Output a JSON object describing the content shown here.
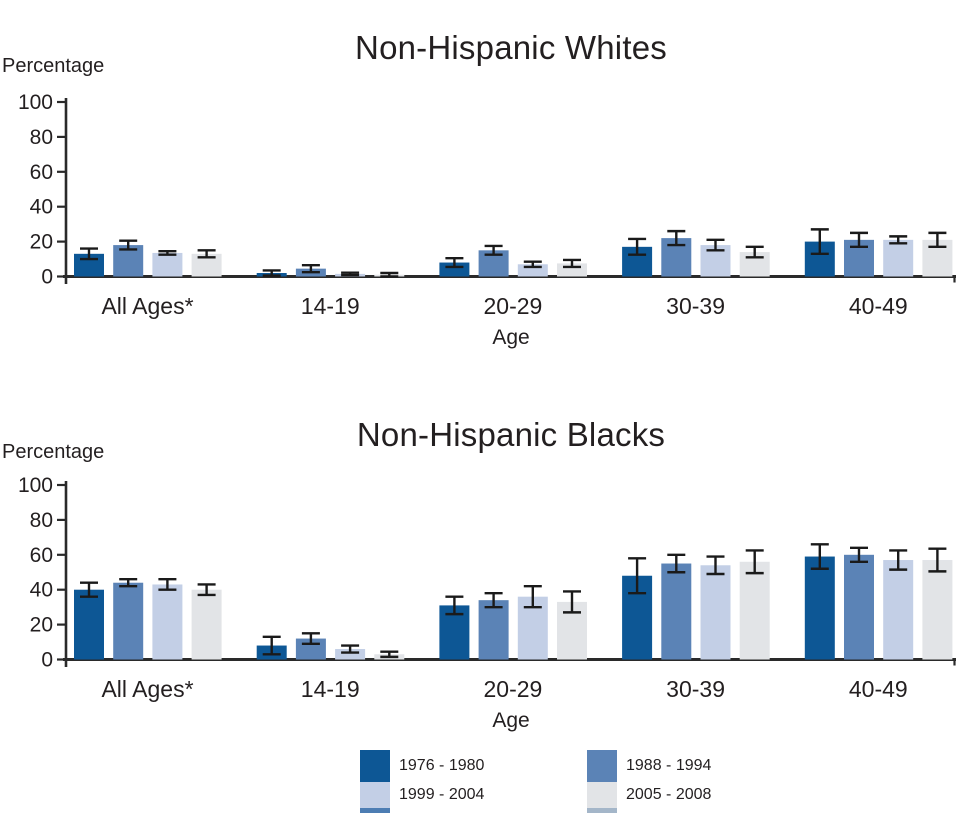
{
  "figure": {
    "background": "#ffffff",
    "text_color": "#231f20",
    "axis_color": "#2a2a2a",
    "error_bar_color": "#1a1a1a"
  },
  "chart_data": [
    {
      "type": "bar",
      "title": "Non-Hispanic Whites",
      "ylabel": "Percentage",
      "xlabel": "Age",
      "ylim": [
        0,
        100
      ],
      "yticks": [
        0,
        20,
        40,
        60,
        80,
        100
      ],
      "grid": false,
      "error_bars": true,
      "categories": [
        "All Ages*",
        "14-19",
        "20-29",
        "30-39",
        "40-49"
      ],
      "series": [
        {
          "name": "1976 - 1980",
          "color": "#0d5795",
          "values": [
            13,
            2,
            8,
            17,
            20
          ],
          "error": [
            3,
            1.5,
            2.5,
            4.5,
            7
          ]
        },
        {
          "name": "1988 - 1994",
          "color": "#5b83b6",
          "values": [
            18,
            4.5,
            15,
            22,
            21
          ],
          "error": [
            2.5,
            2,
            2.5,
            4,
            4
          ]
        },
        {
          "name": "1999 - 2004",
          "color": "#c3cfe6",
          "values": [
            13.5,
            1.5,
            7,
            18,
            21
          ],
          "error": [
            1,
            0.7,
            1.5,
            3,
            2
          ]
        },
        {
          "name": "2005 - 2008",
          "color": "#e2e4e7",
          "values": [
            13,
            1,
            7.5,
            14,
            21
          ],
          "error": [
            2,
            1,
            2,
            3,
            4
          ]
        }
      ]
    },
    {
      "type": "bar",
      "title": "Non-Hispanic Blacks",
      "ylabel": "Percentage",
      "xlabel": "Age",
      "ylim": [
        0,
        100
      ],
      "yticks": [
        0,
        20,
        40,
        60,
        80,
        100
      ],
      "grid": false,
      "error_bars": true,
      "categories": [
        "All Ages*",
        "14-19",
        "20-29",
        "30-39",
        "40-49"
      ],
      "series": [
        {
          "name": "1976 - 1980",
          "color": "#0d5795",
          "values": [
            40,
            8,
            31,
            48,
            59
          ],
          "error": [
            4,
            5,
            5,
            10,
            7
          ]
        },
        {
          "name": "1988 - 1994",
          "color": "#5b83b6",
          "values": [
            44,
            12,
            34,
            55,
            60
          ],
          "error": [
            2,
            3,
            4,
            5,
            4
          ]
        },
        {
          "name": "1999 - 2004",
          "color": "#c3cfe6",
          "values": [
            43,
            6,
            36,
            54,
            57
          ],
          "error": [
            3,
            2,
            6,
            5,
            5.5
          ]
        },
        {
          "name": "2005 - 2008",
          "color": "#e2e4e7",
          "values": [
            40,
            3,
            33,
            56,
            57
          ],
          "error": [
            3,
            1.5,
            6,
            6.5,
            6.5
          ]
        }
      ]
    }
  ],
  "legend": {
    "position": "bottom",
    "columns": [
      {
        "items": [
          {
            "label": "1976 - 1980",
            "color": "#0d5795"
          },
          {
            "label": "1999 - 2004",
            "color": "#c3cfe6"
          }
        ],
        "strip_color": "#4d7db3"
      },
      {
        "items": [
          {
            "label": "1988 - 1994",
            "color": "#5b83b6"
          },
          {
            "label": "2005 - 2008",
            "color": "#e2e4e7"
          }
        ],
        "strip_color": "#a4b6c9"
      }
    ]
  }
}
